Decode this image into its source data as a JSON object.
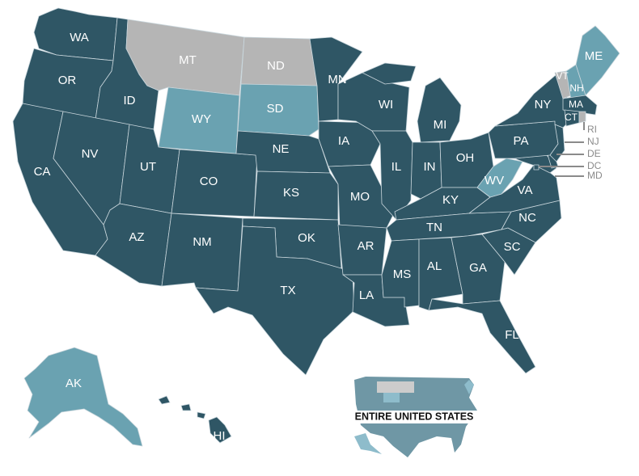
{
  "colors": {
    "high": "#2f5665",
    "medium": "#6aa2b1",
    "none": "#b5b5b5",
    "border": "#c9d6dc",
    "callout": "#8a8a8a",
    "inset_body": "#6f97a5",
    "inset_medium": "#8ebccb",
    "inset_none": "#cccccc"
  },
  "states": {
    "WA": {
      "label": "WA",
      "category": "high"
    },
    "OR": {
      "label": "OR",
      "category": "high"
    },
    "CA": {
      "label": "CA",
      "category": "high"
    },
    "ID": {
      "label": "ID",
      "category": "high"
    },
    "NV": {
      "label": "NV",
      "category": "high"
    },
    "MT": {
      "label": "MT",
      "category": "none"
    },
    "WY": {
      "label": "WY",
      "category": "medium"
    },
    "UT": {
      "label": "UT",
      "category": "high"
    },
    "CO": {
      "label": "CO",
      "category": "high"
    },
    "AZ": {
      "label": "AZ",
      "category": "high"
    },
    "NM": {
      "label": "NM",
      "category": "high"
    },
    "ND": {
      "label": "ND",
      "category": "none"
    },
    "SD": {
      "label": "SD",
      "category": "medium"
    },
    "NE": {
      "label": "NE",
      "category": "high"
    },
    "KS": {
      "label": "KS",
      "category": "high"
    },
    "OK": {
      "label": "OK",
      "category": "high"
    },
    "TX": {
      "label": "TX",
      "category": "high"
    },
    "MN": {
      "label": "MN",
      "category": "high"
    },
    "IA": {
      "label": "IA",
      "category": "high"
    },
    "MO": {
      "label": "MO",
      "category": "high"
    },
    "AR": {
      "label": "AR",
      "category": "high"
    },
    "LA": {
      "label": "LA",
      "category": "high"
    },
    "WI": {
      "label": "WI",
      "category": "high"
    },
    "IL": {
      "label": "IL",
      "category": "high"
    },
    "MI": {
      "label": "MI",
      "category": "high"
    },
    "IN": {
      "label": "IN",
      "category": "high"
    },
    "OH": {
      "label": "OH",
      "category": "high"
    },
    "KY": {
      "label": "KY",
      "category": "high"
    },
    "TN": {
      "label": "TN",
      "category": "high"
    },
    "MS": {
      "label": "MS",
      "category": "high"
    },
    "AL": {
      "label": "AL",
      "category": "high"
    },
    "GA": {
      "label": "GA",
      "category": "high"
    },
    "FL": {
      "label": "FL",
      "category": "high"
    },
    "SC": {
      "label": "SC",
      "category": "high"
    },
    "NC": {
      "label": "NC",
      "category": "high"
    },
    "VA": {
      "label": "VA",
      "category": "high"
    },
    "WV": {
      "label": "WV",
      "category": "medium"
    },
    "PA": {
      "label": "PA",
      "category": "high"
    },
    "NY": {
      "label": "NY",
      "category": "high"
    },
    "VT": {
      "label": "VT",
      "category": "none"
    },
    "NH": {
      "label": "NH",
      "category": "medium"
    },
    "ME": {
      "label": "ME",
      "category": "medium"
    },
    "MA": {
      "label": "MA",
      "category": "high"
    },
    "CT": {
      "label": "CT",
      "category": "high"
    },
    "RI": {
      "label": "RI",
      "category": "none"
    },
    "NJ": {
      "label": "NJ",
      "category": "high"
    },
    "DE": {
      "label": "DE",
      "category": "high"
    },
    "MD": {
      "label": "MD",
      "category": "high"
    },
    "DC": {
      "label": "DC",
      "category": "high"
    },
    "AK": {
      "label": "AK",
      "category": "medium"
    },
    "HI": {
      "label": "HI",
      "category": "high"
    }
  },
  "callouts": [
    "RI",
    "NJ",
    "DE",
    "DC",
    "MD"
  ],
  "inset": {
    "title": "ENTIRE UNITED STATES"
  }
}
